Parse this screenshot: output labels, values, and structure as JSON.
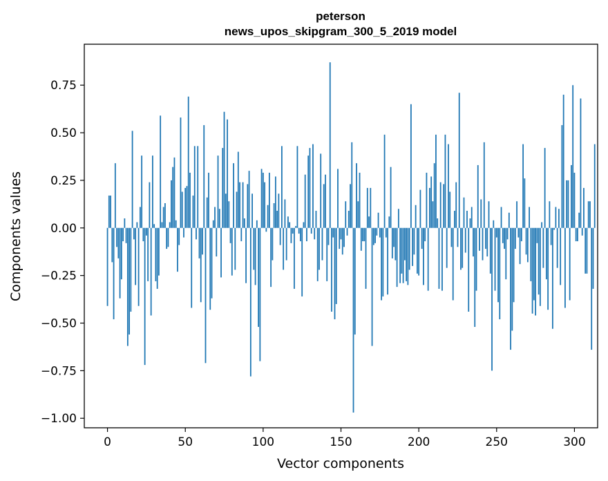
{
  "chart_data": {
    "type": "bar",
    "title_line1": "peterson",
    "title_line2": "news_upos_skipgram_300_5_2019 model",
    "xlabel": "Vector components",
    "ylabel": "Components values",
    "xlim": [
      -14.9,
      314.9
    ],
    "ylim": [
      -1.05,
      0.965
    ],
    "xticks": [
      0,
      50,
      100,
      150,
      200,
      250,
      300
    ],
    "xtick_labels": [
      "0",
      "50",
      "100",
      "150",
      "200",
      "250",
      "300"
    ],
    "yticks": [
      -1.0,
      -0.75,
      -0.5,
      -0.25,
      0.0,
      0.25,
      0.5,
      0.75
    ],
    "ytick_labels": [
      "−1.00",
      "−0.75",
      "−0.50",
      "−0.25",
      "0.00",
      "0.25",
      "0.50",
      "0.75"
    ],
    "grid": false,
    "bar_color": "#1f77b4",
    "values": [
      -0.41,
      0.17,
      0.17,
      -0.18,
      -0.48,
      0.34,
      -0.1,
      -0.16,
      -0.37,
      -0.27,
      -0.07,
      0.05,
      -0.08,
      -0.62,
      -0.56,
      -0.44,
      0.51,
      -0.06,
      -0.3,
      0.03,
      -0.41,
      0.11,
      0.38,
      -0.07,
      -0.72,
      -0.04,
      -0.28,
      0.24,
      -0.46,
      0.38,
      0.02,
      -0.28,
      -0.32,
      -0.25,
      0.59,
      0.03,
      0.11,
      0.13,
      -0.11,
      -0.1,
      0.03,
      0.25,
      0.32,
      0.37,
      0.04,
      -0.23,
      -0.09,
      0.58,
      0.19,
      -0.05,
      0.21,
      0.22,
      0.69,
      0.29,
      -0.42,
      0.17,
      0.43,
      -0.06,
      0.43,
      -0.16,
      -0.39,
      -0.14,
      0.54,
      -0.71,
      0.16,
      0.29,
      -0.43,
      -0.37,
      0.04,
      0.11,
      -0.15,
      0.38,
      0.1,
      -0.26,
      0.42,
      0.61,
      0.18,
      0.57,
      0.14,
      -0.08,
      -0.25,
      0.34,
      -0.22,
      0.19,
      0.4,
      0.24,
      -0.07,
      0.24,
      0.05,
      -0.29,
      0.23,
      0.3,
      -0.78,
      0.18,
      -0.22,
      -0.3,
      0.04,
      -0.52,
      -0.7,
      0.31,
      0.29,
      0.24,
      -0.02,
      0.12,
      0.29,
      -0.31,
      -0.17,
      0.13,
      0.27,
      0.09,
      0.18,
      -0.09,
      0.43,
      -0.22,
      0.15,
      -0.17,
      0.06,
      0.03,
      -0.08,
      -0.03,
      -0.32,
      0.01,
      0.43,
      -0.03,
      -0.07,
      -0.36,
      0.03,
      0.28,
      -0.07,
      0.38,
      0.42,
      -0.03,
      0.44,
      -0.06,
      0.09,
      -0.28,
      -0.22,
      0.39,
      -0.17,
      0.23,
      0.28,
      -0.28,
      -0.09,
      0.87,
      -0.44,
      -0.05,
      -0.48,
      -0.4,
      0.31,
      -0.11,
      -0.06,
      -0.14,
      -0.1,
      0.14,
      -0.04,
      0.09,
      0.23,
      0.45,
      -0.97,
      -0.56,
      0.34,
      0.14,
      0.29,
      -0.12,
      -0.07,
      -0.07,
      -0.32,
      0.21,
      0.06,
      0.21,
      -0.62,
      -0.09,
      -0.08,
      -0.04,
      0.08,
      -0.05,
      -0.38,
      -0.36,
      0.49,
      -0.05,
      -0.35,
      0.06,
      0.32,
      -0.16,
      -0.1,
      -0.17,
      -0.31,
      0.1,
      -0.29,
      -0.24,
      -0.29,
      -0.17,
      -0.28,
      -0.3,
      -0.22,
      0.65,
      -0.2,
      -0.14,
      0.12,
      -0.24,
      -0.25,
      0.2,
      -0.11,
      -0.3,
      -0.07,
      0.29,
      -0.33,
      0.21,
      0.27,
      0.14,
      0.34,
      0.49,
      0.05,
      -0.32,
      0.24,
      -0.33,
      0.23,
      0.49,
      -0.21,
      0.44,
      0.19,
      -0.1,
      -0.38,
      0.09,
      0.24,
      -0.1,
      0.71,
      -0.22,
      -0.21,
      0.16,
      -0.13,
      0.09,
      -0.44,
      0.05,
      0.11,
      -0.15,
      -0.52,
      -0.33,
      0.33,
      -0.12,
      0.15,
      -0.17,
      0.45,
      -0.11,
      -0.15,
      0.14,
      -0.24,
      -0.75,
      0.04,
      -0.33,
      -0.05,
      -0.39,
      -0.48,
      0.11,
      -0.08,
      -0.11,
      -0.27,
      -0.06,
      0.08,
      -0.64,
      -0.54,
      -0.39,
      -0.11,
      0.14,
      -0.05,
      -0.19,
      -0.07,
      0.44,
      0.26,
      -0.14,
      -0.18,
      0.11,
      -0.28,
      -0.45,
      -0.38,
      -0.46,
      -0.08,
      -0.35,
      -0.41,
      0.03,
      -0.21,
      0.42,
      -0.27,
      -0.43,
      0.14,
      -0.09,
      -0.53,
      -0.01,
      0.11,
      -0.21,
      0.1,
      -0.3,
      0.54,
      0.7,
      -0.42,
      0.25,
      0.25,
      -0.38,
      0.33,
      0.75,
      0.29,
      -0.07,
      -0.07,
      0.08,
      0.68,
      -0.04,
      0.21,
      -0.24,
      -0.24,
      0.14,
      0.14,
      -0.64,
      -0.32,
      0.44
    ]
  }
}
